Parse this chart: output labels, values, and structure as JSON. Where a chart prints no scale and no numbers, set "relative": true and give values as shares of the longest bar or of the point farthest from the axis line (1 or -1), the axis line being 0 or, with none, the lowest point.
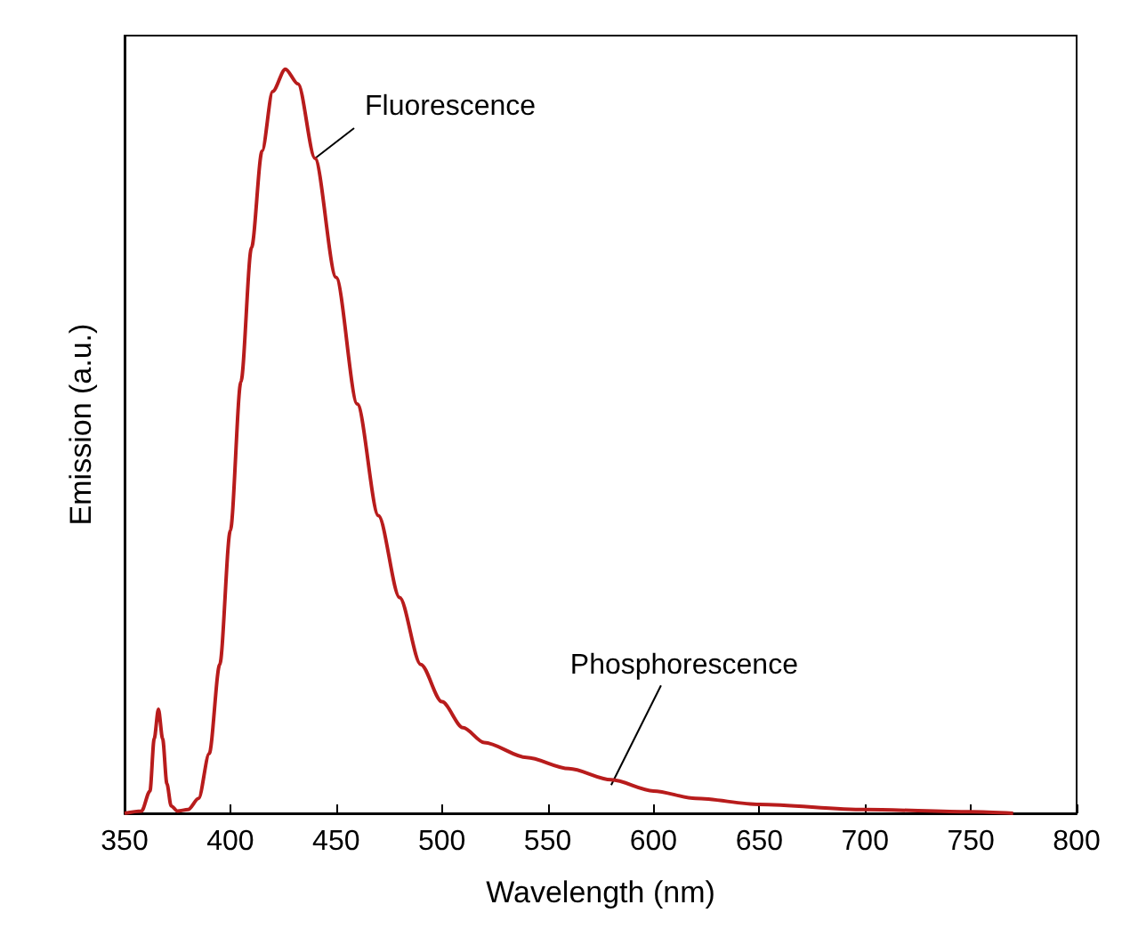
{
  "chart_data": {
    "type": "line",
    "xlabel": "Wavelength (nm)",
    "ylabel": "Emission (a.u.)",
    "relative": true,
    "xlim": [
      350,
      800
    ],
    "xticks": [
      350,
      400,
      450,
      500,
      550,
      600,
      650,
      700,
      750,
      800
    ],
    "grid": false,
    "marker": "none",
    "line_style": "solid",
    "x": [
      350,
      358,
      362,
      364,
      366,
      368,
      370,
      372,
      375,
      380,
      385,
      390,
      395,
      400,
      405,
      410,
      415,
      420,
      426,
      432,
      440,
      450,
      460,
      470,
      480,
      490,
      500,
      510,
      520,
      540,
      560,
      580,
      600,
      620,
      650,
      700,
      750,
      770
    ],
    "series": [
      {
        "color": "#b81c1c",
        "values": [
          0,
          0.003,
          0.03,
          0.1,
          0.14,
          0.1,
          0.04,
          0.01,
          0.003,
          0.005,
          0.02,
          0.08,
          0.2,
          0.38,
          0.58,
          0.76,
          0.89,
          0.97,
          1.0,
          0.98,
          0.88,
          0.72,
          0.55,
          0.4,
          0.29,
          0.2,
          0.15,
          0.115,
          0.095,
          0.075,
          0.06,
          0.045,
          0.03,
          0.02,
          0.012,
          0.005,
          0.002,
          0
        ]
      }
    ],
    "annotations": [
      {
        "text": "Fluorescence",
        "x": 440,
        "y": 0.88
      },
      {
        "text": "Phosphorescence",
        "x": 580,
        "y": 0.038
      }
    ]
  }
}
